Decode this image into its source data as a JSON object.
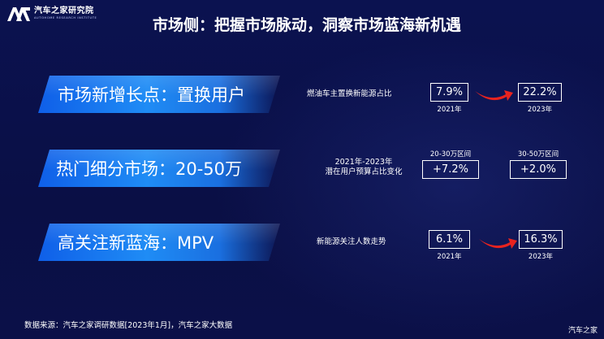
{
  "brand": {
    "name_cn": "汽车之家研究院",
    "name_en": "AUTOHOME RESEARCH INSTITUTE",
    "mark": "autohome-logo-icon"
  },
  "title": "市场侧：把握市场脉动，洞察市场蓝海新机遇",
  "rows": [
    {
      "banner": "市场新增长点：置换用户",
      "metric_label": "燃油车主置换新能源占比",
      "from": {
        "value": "7.9%",
        "year": "2021年"
      },
      "to": {
        "value": "22.2%",
        "year": "2023年"
      }
    },
    {
      "banner": "热门细分市场：20-50万",
      "metric_label_line1": "2021年-2023年",
      "metric_label_line2": "潜在用户预算占比变化",
      "segments": [
        {
          "label": "20-30万区间",
          "value": "+7.2%"
        },
        {
          "label": "30-50万区间",
          "value": "+2.0%"
        }
      ]
    },
    {
      "banner": "高关注新蓝海：MPV",
      "metric_label": "新能源关注人数走势",
      "from": {
        "value": "6.1%",
        "year": "2021年"
      },
      "to": {
        "value": "16.3%",
        "year": "2023年"
      }
    }
  ],
  "footnote": "数据来源：汽车之家调研数据[2023年1月]，汽车之家大数据",
  "watermark": "汽车之家",
  "colors": {
    "background": "#0a0f45",
    "banner": "#1f8cf5",
    "arrow": "#e8231f"
  }
}
